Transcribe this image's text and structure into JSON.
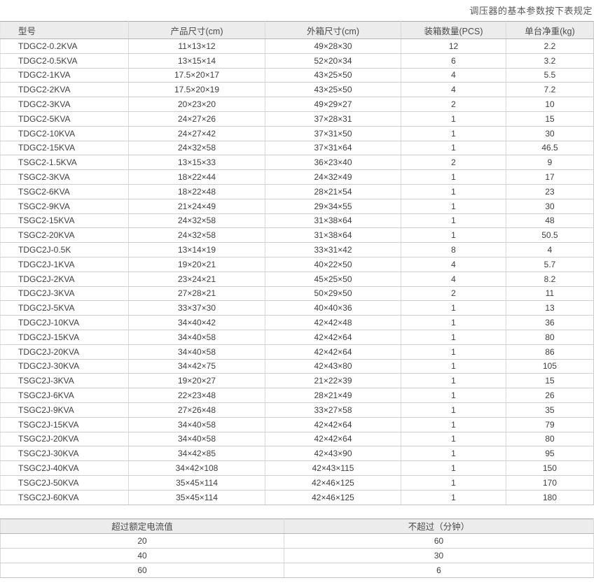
{
  "page": {
    "title": "调压器的基本参数按下表规定"
  },
  "colors": {
    "header_background": "#ececec",
    "border": "#cfcfcf",
    "border_dark": "#a9a9a9",
    "text": "#3e3e3e",
    "title_text": "#595959"
  },
  "spec_table": {
    "headers": [
      "型号",
      "产品尺寸(cm)",
      "外箱尺寸(cm)",
      "装箱数量(PCS)",
      "单台净重(kg)"
    ],
    "rows": [
      [
        "TDGC2-0.2KVA",
        "11×13×12",
        "49×28×30",
        "12",
        "2.2"
      ],
      [
        "TDGC2-0.5KVA",
        "13×15×14",
        "52×20×34",
        "6",
        "3.2"
      ],
      [
        "TDGC2-1KVA",
        "17.5×20×17",
        "43×25×50",
        "4",
        "5.5"
      ],
      [
        "TDGC2-2KVA",
        "17.5×20×19",
        "43×25×50",
        "4",
        "7.2"
      ],
      [
        "TDGC2-3KVA",
        "20×23×20",
        "49×29×27",
        "2",
        "10"
      ],
      [
        "TDGC2-5KVA",
        "24×27×26",
        "37×28×31",
        "1",
        "15"
      ],
      [
        "TDGC2-10KVA",
        "24×27×42",
        "37×31×50",
        "1",
        "30"
      ],
      [
        "TDGC2-15KVA",
        "24×32×58",
        "37×31×64",
        "1",
        "46.5"
      ],
      [
        "TSGC2-1.5KVA",
        "13×15×33",
        "36×23×40",
        "2",
        "9"
      ],
      [
        "TSGC2-3KVA",
        "18×22×44",
        "24×32×49",
        "1",
        "17"
      ],
      [
        "TSGC2-6KVA",
        "18×22×48",
        "28×21×54",
        "1",
        "23"
      ],
      [
        "TSGC2-9KVA",
        "21×24×49",
        "29×34×55",
        "1",
        "30"
      ],
      [
        "TSGC2-15KVA",
        "24×32×58",
        "31×38×64",
        "1",
        "48"
      ],
      [
        "TSGC2-20KVA",
        "24×32×58",
        "31×38×64",
        "1",
        "50.5"
      ],
      [
        "TDGC2J-0.5K",
        "13×14×19",
        "33×31×42",
        "8",
        "4"
      ],
      [
        "TDGC2J-1KVA",
        "19×20×21",
        "40×22×50",
        "4",
        "5.7"
      ],
      [
        "TDGC2J-2KVA",
        "23×24×21",
        "45×25×50",
        "4",
        "8.2"
      ],
      [
        "TDGC2J-3KVA",
        "27×28×21",
        "50×29×50",
        "2",
        "11"
      ],
      [
        "TDGC2J-5KVA",
        "33×37×30",
        "40×40×36",
        "1",
        "13"
      ],
      [
        "TDGC2J-10KVA",
        "34×40×42",
        "42×42×48",
        "1",
        "36"
      ],
      [
        "TDGC2J-15KVA",
        "34×40×58",
        "42×42×64",
        "1",
        "80"
      ],
      [
        "TDGC2J-20KVA",
        "34×40×58",
        "42×42×64",
        "1",
        "86"
      ],
      [
        "TDGC2J-30KVA",
        "34×42×75",
        "42×43×80",
        "1",
        "105"
      ],
      [
        "TSGC2J-3KVA",
        "19×20×27",
        "21×22×39",
        "1",
        "15"
      ],
      [
        "TSGC2J-6KVA",
        "22×23×48",
        "28×21×49",
        "1",
        "26"
      ],
      [
        "TSGC2J-9KVA",
        "27×26×48",
        "33×27×58",
        "1",
        "35"
      ],
      [
        "TSGC2J-15KVA",
        "34×40×58",
        "42×42×64",
        "1",
        "79"
      ],
      [
        "TSGC2J-20KVA",
        "34×40×58",
        "42×42×64",
        "1",
        "80"
      ],
      [
        "TSGC2J-30KVA",
        "34×42×85",
        "42×43×90",
        "1",
        "95"
      ],
      [
        "TSGC2J-40KVA",
        "34×42×108",
        "42×43×115",
        "1",
        "150"
      ],
      [
        "TSGC2J-50KVA",
        "35×45×114",
        "42×46×125",
        "1",
        "170"
      ],
      [
        "TSGC2J-60KVA",
        "35×45×114",
        "42×46×125",
        "1",
        "180"
      ]
    ]
  },
  "overload_table": {
    "headers": [
      "超过额定电流值",
      "不超过（分钟）"
    ],
    "rows": [
      [
        "20",
        "60"
      ],
      [
        "40",
        "30"
      ],
      [
        "60",
        "6"
      ]
    ]
  }
}
